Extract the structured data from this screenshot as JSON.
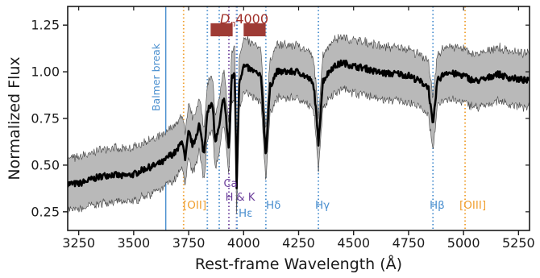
{
  "chart_data": {
    "type": "line",
    "title": "",
    "xlabel": "Rest-frame Wavelength (Å)",
    "ylabel": "Normalized Flux",
    "xlim": [
      3200,
      5300
    ],
    "ylim": [
      0.15,
      1.35
    ],
    "x_ticks": [
      3250,
      3500,
      3750,
      4000,
      4250,
      4500,
      4750,
      5000,
      5250
    ],
    "y_ticks": [
      0.25,
      0.5,
      0.75,
      1.0,
      1.25
    ],
    "x_tick_labels": [
      "3250",
      "3500",
      "3750",
      "4000",
      "4250",
      "4500",
      "4750",
      "5000",
      "5250"
    ],
    "y_tick_labels": [
      "0.25",
      "0.50",
      "0.75",
      "1.00",
      "1.25"
    ],
    "grid": false,
    "series": [
      {
        "style": "black line with grey shaded band",
        "x": [
          3200,
          3250,
          3300,
          3350,
          3400,
          3450,
          3500,
          3550,
          3600,
          3640,
          3660,
          3680,
          3700,
          3720,
          3734,
          3750,
          3770,
          3798,
          3820,
          3835,
          3860,
          3870,
          3889,
          3910,
          3933,
          3945,
          3960,
          3968,
          3980,
          4000,
          4020,
          4050,
          4080,
          4101,
          4120,
          4150,
          4200,
          4250,
          4300,
          4320,
          4340,
          4360,
          4400,
          4450,
          4500,
          4550,
          4600,
          4650,
          4700,
          4750,
          4800,
          4840,
          4861,
          4880,
          4920,
          4950,
          5000,
          5050,
          5100,
          5150,
          5200,
          5250,
          5300
        ],
        "y": [
          0.4,
          0.4,
          0.42,
          0.44,
          0.45,
          0.44,
          0.45,
          0.48,
          0.5,
          0.52,
          0.55,
          0.56,
          0.58,
          0.64,
          0.52,
          0.68,
          0.6,
          0.72,
          0.55,
          0.8,
          0.82,
          0.62,
          0.7,
          0.88,
          0.58,
          0.96,
          1.0,
          0.38,
          0.95,
          1.03,
          1.02,
          1.0,
          0.97,
          0.55,
          0.92,
          1.0,
          1.0,
          1.0,
          0.96,
          0.92,
          0.62,
          0.95,
          1.02,
          1.05,
          1.03,
          1.02,
          1.0,
          0.99,
          0.99,
          0.98,
          0.95,
          0.92,
          0.7,
          0.95,
          1.0,
          0.99,
          0.98,
          0.95,
          0.96,
          0.99,
          0.97,
          0.96,
          0.95
        ],
        "band_width": 0.13
      }
    ],
    "lines": [
      {
        "x": 3646,
        "style": "solid",
        "color": "#4a8fcf",
        "label": "Balmer break"
      },
      {
        "x": 3727,
        "style": "dotted",
        "color": "#f0a030",
        "label": "[OII]"
      },
      {
        "x": 3835,
        "style": "dotted",
        "color": "#4a8fcf",
        "label": ""
      },
      {
        "x": 3889,
        "style": "dotted",
        "color": "#4a8fcf",
        "label": ""
      },
      {
        "x": 3933,
        "style": "dotted",
        "color": "#6a3d9a",
        "label": ""
      },
      {
        "x": 3968,
        "style": "dotted",
        "color": "#6a3d9a",
        "label": ""
      },
      {
        "x": 3970,
        "style": "dotted",
        "color": "#4a8fcf",
        "label": ""
      },
      {
        "x": 4101,
        "style": "dotted",
        "color": "#4a8fcf",
        "label": "Hδ"
      },
      {
        "x": 4340,
        "style": "dotted",
        "color": "#4a8fcf",
        "label": "Hγ"
      },
      {
        "x": 4861,
        "style": "dotted",
        "color": "#4a8fcf",
        "label": "Hβ"
      },
      {
        "x": 5007,
        "style": "dotted",
        "color": "#f0a030",
        "label": "[OIII]"
      }
    ],
    "annotations": {
      "cahk": {
        "line1": "Ca",
        "line2": "H & K",
        "color": "#6a3d9a"
      },
      "heps": {
        "text": "Hε",
        "color": "#4a8fcf"
      },
      "dn4000": {
        "text": "D",
        "subscript": "n",
        "suffix": "4000",
        "color": "#a0302a"
      }
    },
    "dn4000_windows": [
      [
        3850,
        3950
      ],
      [
        4000,
        4100
      ]
    ],
    "dn4000_y": [
      1.19,
      1.26
    ],
    "colors": {
      "line": "#000000",
      "band": "#b9b9b9",
      "band_edge": "#444444",
      "blue": "#4a8fcf",
      "orange": "#f0a030",
      "purple": "#6a3d9a",
      "dn_box": "#9e3b35"
    }
  }
}
